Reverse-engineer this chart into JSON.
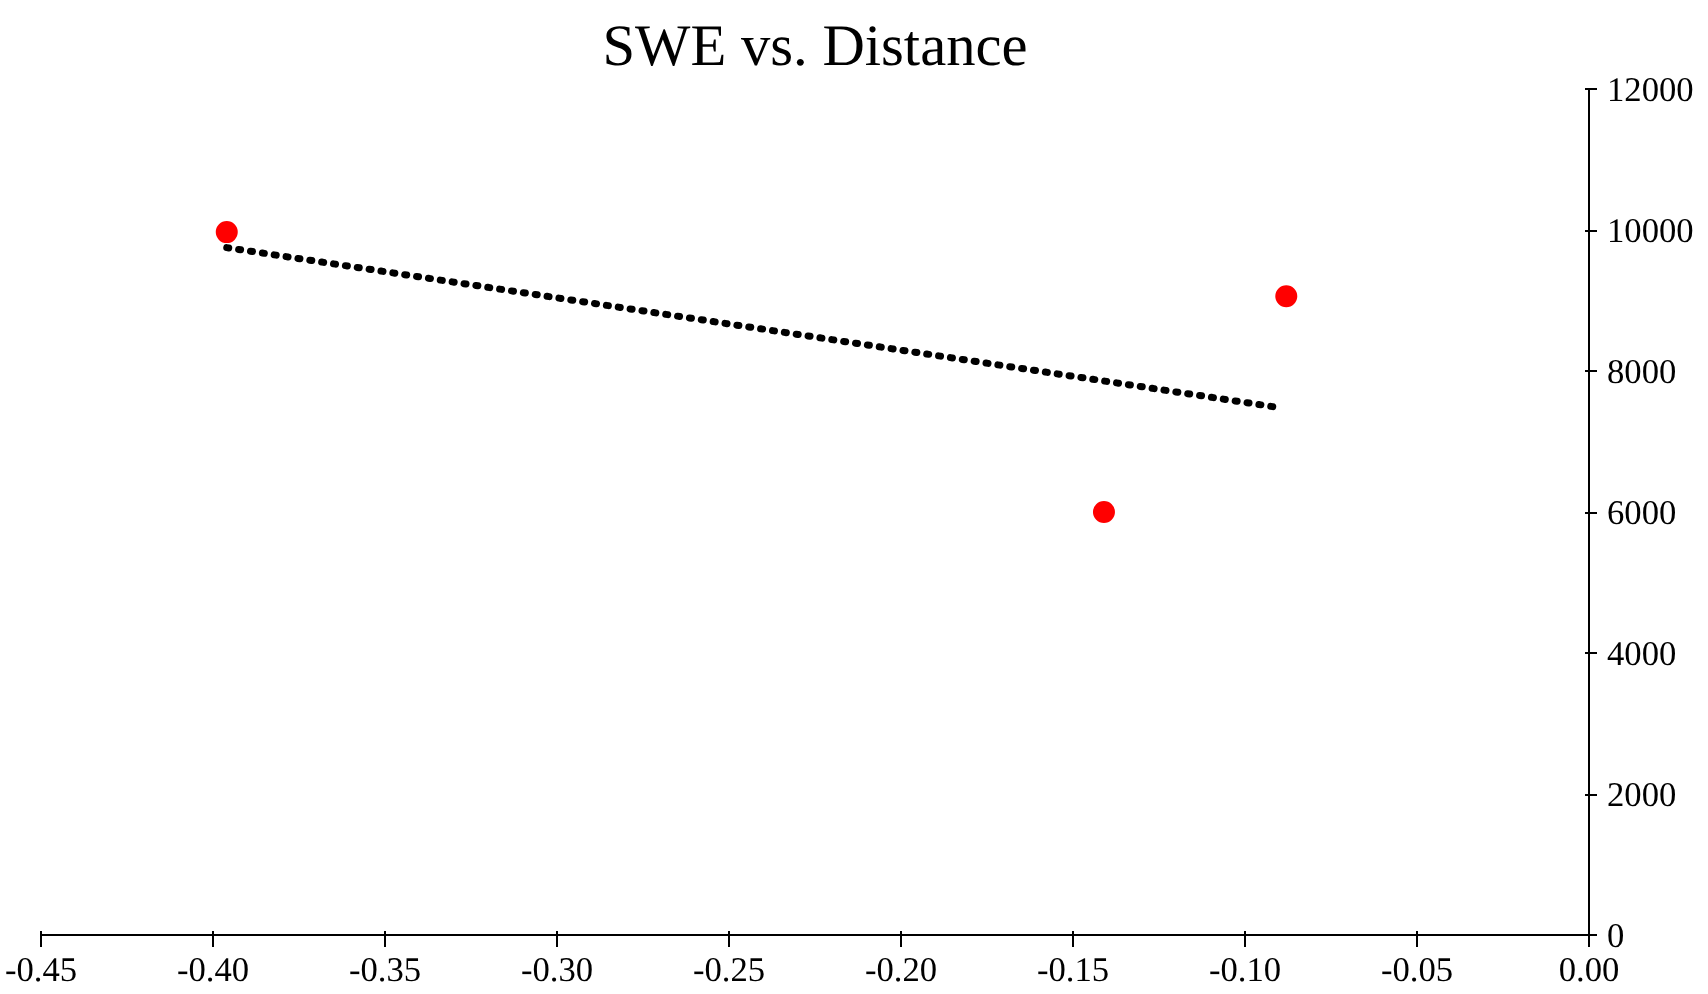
{
  "chart_data": {
    "type": "scatter",
    "title": "SWE vs. Distance",
    "series": [
      {
        "type": "scatter",
        "color": "#ff0000",
        "marker": "circle",
        "x": [
          -0.396,
          -0.141,
          -0.088
        ],
        "values": [
          9970,
          6000,
          9060
        ]
      },
      {
        "type": "line",
        "color": "#000000",
        "line_style": "dotted",
        "marker": "none",
        "x": [
          -0.396,
          -0.09
        ],
        "values": [
          9750,
          7480
        ]
      }
    ],
    "xlim": [
      -0.45,
      0.0
    ],
    "xticks": [
      {
        "value": -0.45,
        "label": "-0.45"
      },
      {
        "value": -0.4,
        "label": "-0.40"
      },
      {
        "value": -0.35,
        "label": "-0.35"
      },
      {
        "value": -0.3,
        "label": "-0.30"
      },
      {
        "value": -0.25,
        "label": "-0.25"
      },
      {
        "value": -0.2,
        "label": "-0.20"
      },
      {
        "value": -0.15,
        "label": "-0.15"
      },
      {
        "value": -0.1,
        "label": "-0.10"
      },
      {
        "value": -0.05,
        "label": "-0.05"
      },
      {
        "value": 0.0,
        "label": "0.00"
      }
    ],
    "ylim": [
      0,
      12000
    ],
    "yticks": [
      0,
      2000,
      4000,
      6000,
      8000,
      10000,
      12000
    ],
    "grid": false
  }
}
